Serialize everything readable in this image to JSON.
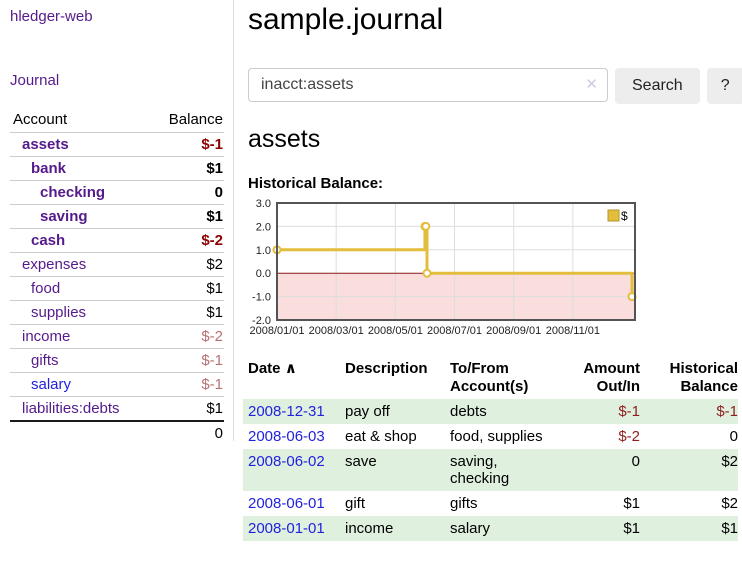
{
  "colors": {
    "purple_link": "#551a8b",
    "blue_link": "#2222dd",
    "negative_bold": "#8e0000",
    "negative_muted": "#b97070",
    "negative_table": "#8e1f1f",
    "row_shade_green": "#dff0df",
    "button_bg": "#ededed"
  },
  "sidebar": {
    "brand": "hledger-web",
    "nav_label": "Journal",
    "accounts_table": {
      "account_header": "Account",
      "balance_header": "Balance",
      "rows": [
        {
          "account": "assets",
          "balance": "$-1",
          "indent": 1,
          "account_class": "purple-link bold",
          "balance_class": "neg-bold"
        },
        {
          "account": "bank",
          "balance": "$1",
          "indent": 2,
          "account_class": "purple-link bold",
          "balance_class": "pos-bold"
        },
        {
          "account": "checking",
          "balance": "0",
          "indent": 3,
          "account_class": "purple-link bold",
          "balance_class": "pos-bold"
        },
        {
          "account": "saving",
          "balance": "$1",
          "indent": 3,
          "account_class": "purple-link bold",
          "balance_class": "pos-bold"
        },
        {
          "account": "cash",
          "balance": "$-2",
          "indent": 2,
          "account_class": "purple-link bold",
          "balance_class": "neg-bold"
        },
        {
          "account": "expenses",
          "balance": "$2",
          "indent": 1,
          "account_class": "purple-link",
          "balance_class": ""
        },
        {
          "account": "food",
          "balance": "$1",
          "indent": 2,
          "account_class": "purple-link",
          "balance_class": ""
        },
        {
          "account": "supplies",
          "balance": "$1",
          "indent": 2,
          "account_class": "purple-link",
          "balance_class": ""
        },
        {
          "account": "income",
          "balance": "$-2",
          "indent": 1,
          "account_class": "purple-link",
          "balance_class": "neg-muted"
        },
        {
          "account": "gifts",
          "balance": "$-1",
          "indent": 2,
          "account_class": "purple-link",
          "balance_class": "neg-muted"
        },
        {
          "account": "salary",
          "balance": "$-1",
          "indent": 2,
          "account_class": "blue-link",
          "balance_class": "neg-muted"
        },
        {
          "account": "liabilities:debts",
          "balance": "$1",
          "indent": 1,
          "account_class": "purple-link",
          "balance_class": ""
        }
      ],
      "total": "0"
    }
  },
  "main": {
    "title": "sample.journal",
    "search": {
      "value": "inacct:assets",
      "clear_icon": "✕",
      "search_button": "Search",
      "help_button": "?"
    },
    "account_heading": "assets",
    "chart_label": "Historical Balance:"
  },
  "chart_data": {
    "type": "line",
    "title": "Historical Balance of assets",
    "step": true,
    "legend": "$",
    "legend_position": "top-right",
    "grid": true,
    "xlim": [
      0,
      12.1
    ],
    "ylim": [
      -2,
      3
    ],
    "x_unit": "months since 2008-01-01",
    "x_ticks": [
      {
        "x": 0,
        "label": "2008/01/01"
      },
      {
        "x": 2,
        "label": "2008/03/01"
      },
      {
        "x": 4,
        "label": "2008/05/01"
      },
      {
        "x": 6,
        "label": "2008/07/01"
      },
      {
        "x": 8,
        "label": "2008/09/01"
      },
      {
        "x": 10,
        "label": "2008/11/01"
      }
    ],
    "y_ticks": [
      {
        "v": 3,
        "label": "3.0"
      },
      {
        "v": 2,
        "label": "2.0"
      },
      {
        "v": 1,
        "label": "1.0"
      },
      {
        "v": 0,
        "label": "0.0"
      },
      {
        "v": -1,
        "label": "-1.0"
      },
      {
        "v": -2,
        "label": "-2.0"
      }
    ],
    "series": [
      {
        "name": "$",
        "color": "#e3bd3c",
        "marker_fill": "#ffffff",
        "points": [
          {
            "date": "2008-01-01",
            "x": 0,
            "y": 1
          },
          {
            "date": "2008-06-01",
            "x": 5.0,
            "y": 2
          },
          {
            "date": "2008-06-02",
            "x": 5.03,
            "y": 2
          },
          {
            "date": "2008-06-03",
            "x": 5.07,
            "y": 0
          },
          {
            "date": "2008-12-31",
            "x": 12.0,
            "y": -1
          }
        ]
      }
    ],
    "style": {
      "negative_region_fill": "#fadddd",
      "zero_line_color": "#8b1a1a",
      "grid_color": "#dddddd",
      "border_color": "#545454",
      "tick_label_color": "#222222",
      "legend_swatch_border": "#b5962f"
    }
  },
  "register_table": {
    "headers": {
      "date": "Date",
      "sort_indicator": "∧",
      "description": "Description",
      "accounts": "To/From Account(s)",
      "amount": "Amount Out/In",
      "balance": "Historical Balance"
    },
    "rows": [
      {
        "date": "2008-12-31",
        "description": "pay off",
        "accounts": "debts",
        "amount": "$-1",
        "amount_neg": true,
        "balance": "$-1",
        "balance_neg": true,
        "shaded": true
      },
      {
        "date": "2008-06-03",
        "description": "eat & shop",
        "accounts": "food, supplies",
        "amount": "$-2",
        "amount_neg": true,
        "balance": "0",
        "balance_neg": false,
        "shaded": false
      },
      {
        "date": "2008-06-02",
        "description": "save",
        "accounts": "saving, checking",
        "amount": "0",
        "amount_neg": false,
        "balance": "$2",
        "balance_neg": false,
        "shaded": true
      },
      {
        "date": "2008-06-01",
        "description": "gift",
        "accounts": "gifts",
        "amount": "$1",
        "amount_neg": false,
        "balance": "$2",
        "balance_neg": false,
        "shaded": false
      },
      {
        "date": "2008-01-01",
        "description": "income",
        "accounts": "salary",
        "amount": "$1",
        "amount_neg": false,
        "balance": "$1",
        "balance_neg": false,
        "shaded": true
      }
    ]
  }
}
